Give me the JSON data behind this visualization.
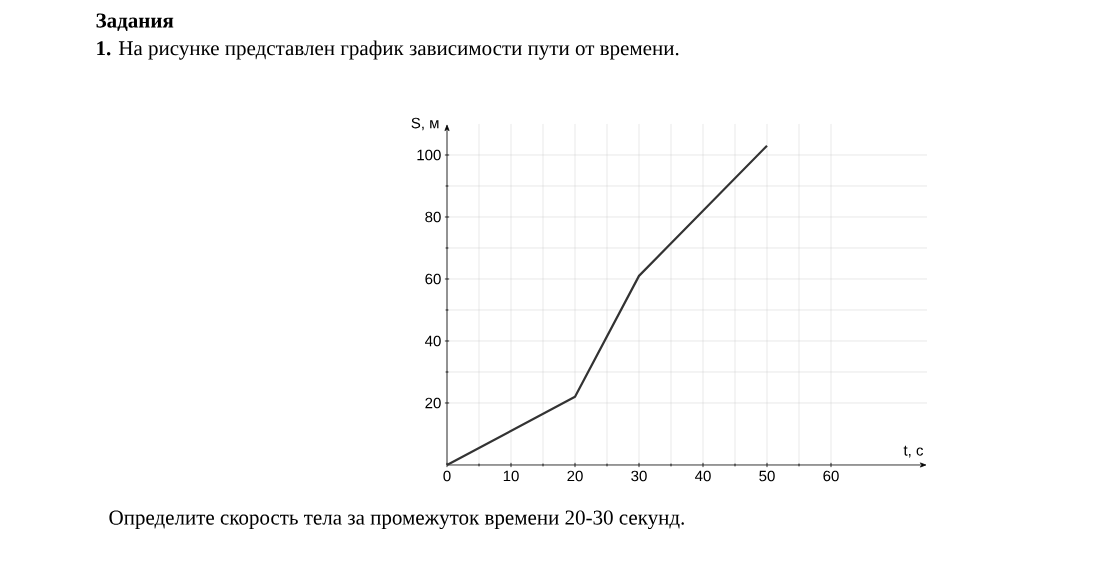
{
  "chart_data": {
    "type": "line",
    "title": "Задания",
    "subtitle": "**1.** На рисунке представлен график зависимости пути от времени.",
    "xlabel": "t, c",
    "ylabel": "S, м",
    "x": [
      0,
      20,
      30,
      50
    ],
    "values": [
      0,
      22,
      61,
      103
    ],
    "color": "#333333",
    "xlim": [
      0,
      75
    ],
    "ylim": [
      0,
      110
    ],
    "xticks": [
      0,
      10,
      20,
      30,
      40,
      50,
      60
    ],
    "yticks": [
      20,
      40,
      60,
      80,
      100
    ],
    "grid": true,
    "annotations": [
      "Определите скорость тела за промежуток времени 20-30 секунд."
    ]
  }
}
